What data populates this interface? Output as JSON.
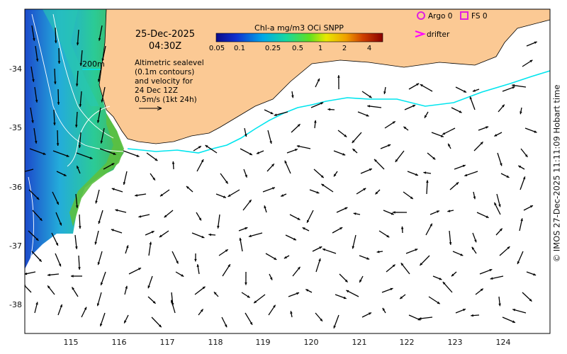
{
  "map": {
    "date": "25-Dec-2025",
    "time": "04:30Z",
    "depth_contour_label": "200m",
    "description_lines": [
      "Altimetric sealevel",
      "(0.1m contours)",
      "and velocity for",
      "24 Dec 12Z",
      "0.5m/s (1kt 24h)"
    ],
    "colorbar": {
      "title": "Chl-a mg/m3 OCi SNPP",
      "ticks": [
        "0.05",
        "0.1",
        "0.25",
        "0.5",
        "1",
        "2",
        "4"
      ]
    },
    "legend": {
      "argo_label": "Argo 0",
      "fs_label": "FS 0",
      "drifter_label": "drifter",
      "argo_color": "#e020e0",
      "fs_color": "#e020e0",
      "drifter_color": "#ff00ff"
    },
    "lon_ticks": [
      "115",
      "116",
      "117",
      "118",
      "119",
      "120",
      "121",
      "122",
      "123",
      "124"
    ],
    "lat_ticks": [
      "-34",
      "-35",
      "-36",
      "-37",
      "-38"
    ],
    "credit": "© IMOS 27-Dec-2025 11:11:09 Hobart time",
    "colors": {
      "land": "#fbc994",
      "ocean": "#ffffff",
      "drifter_track": "#00e5ee",
      "contour": "#ffffff",
      "vector": "#000000"
    }
  }
}
